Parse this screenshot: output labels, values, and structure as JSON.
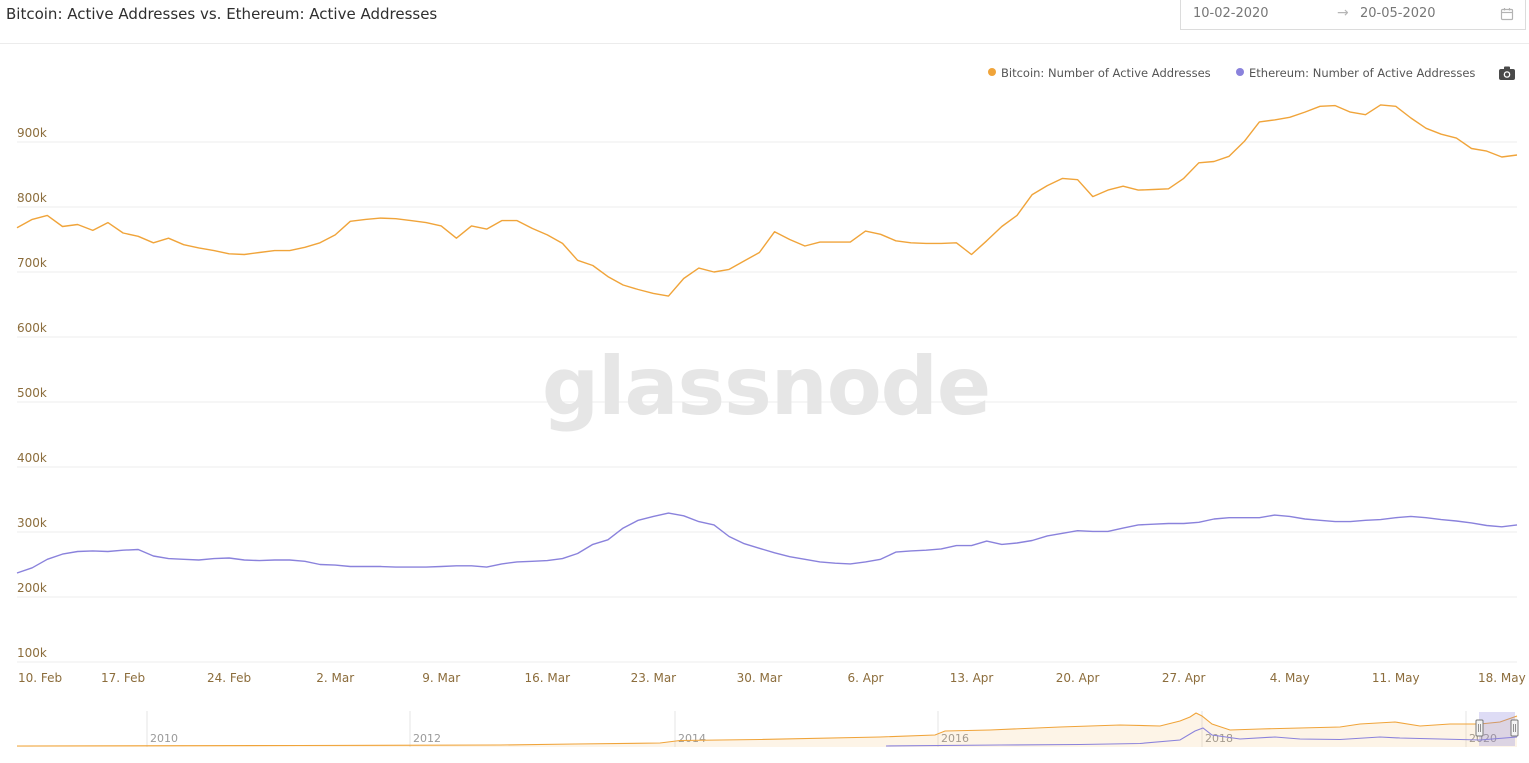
{
  "header": {
    "title": "Bitcoin: Active Addresses vs. Ethereum: Active Addresses",
    "date_from": "10-02-2020",
    "date_arrow": "→",
    "date_to": "20-05-2020"
  },
  "watermark": "glassnode",
  "colors": {
    "bitcoin": "#f0a43a",
    "ethereum": "#8a82dc",
    "grid": "#eeeeee",
    "axis_text": "#8c6d3c"
  },
  "icons": {
    "calendar": "calendar-icon",
    "camera": "camera-icon"
  },
  "chart_data": {
    "type": "line",
    "title": "Bitcoin: Active Addresses vs. Ethereum: Active Addresses",
    "xlabel": "",
    "ylabel": "",
    "x_start": "10-02-2020",
    "x_end": "20-05-2020",
    "x_ticks": [
      "10. Feb",
      "17. Feb",
      "24. Feb",
      "2. Mar",
      "9. Mar",
      "16. Mar",
      "23. Mar",
      "30. Mar",
      "6. Apr",
      "13. Apr",
      "20. Apr",
      "27. Apr",
      "4. May",
      "11. May",
      "18. May"
    ],
    "y_ticks": [
      "100k",
      "200k",
      "300k",
      "400k",
      "500k",
      "600k",
      "700k",
      "800k",
      "900k"
    ],
    "ylim": [
      100000,
      1000000
    ],
    "grid": true,
    "legend_position": "top-right",
    "series": [
      {
        "name": "Bitcoin: Number of Active Addresses",
        "color": "#f0a43a",
        "values": [
          768000,
          781000,
          787000,
          770000,
          773000,
          764000,
          776000,
          760000,
          755000,
          745000,
          752000,
          742000,
          737000,
          733000,
          728000,
          727000,
          730000,
          733000,
          733000,
          738000,
          745000,
          757000,
          778000,
          781000,
          783000,
          782000,
          779000,
          776000,
          771000,
          752000,
          771000,
          766000,
          779000,
          779000,
          767000,
          757000,
          744000,
          718000,
          710000,
          693000,
          680000,
          673000,
          667000,
          663000,
          690000,
          706000,
          700000,
          704000,
          717000,
          730000,
          762000,
          750000,
          740000,
          746000,
          746000,
          746000,
          763000,
          758000,
          748000,
          745000,
          744000,
          744000,
          745000,
          727000,
          748000,
          770000,
          787000,
          819000,
          833000,
          844000,
          842000,
          816000,
          826000,
          832000,
          826000,
          827000,
          828000,
          844000,
          868000,
          870000,
          878000,
          901000,
          931000,
          934000,
          938000,
          946000,
          955000,
          956000,
          946000,
          942000,
          957000,
          955000,
          937000,
          921000,
          912000,
          906000,
          890000,
          886000,
          877000,
          880000
        ]
      },
      {
        "name": "Ethereum: Number of Active Addresses",
        "color": "#8a82dc",
        "values": [
          237000,
          245000,
          258000,
          266000,
          270000,
          271000,
          270000,
          272000,
          273000,
          263000,
          259000,
          258000,
          257000,
          259000,
          260000,
          257000,
          256000,
          257000,
          257000,
          255000,
          250000,
          249000,
          247000,
          247000,
          247000,
          246000,
          246000,
          246000,
          247000,
          248000,
          248000,
          246000,
          251000,
          254000,
          255000,
          256000,
          259000,
          267000,
          281000,
          288000,
          306000,
          318000,
          324000,
          329000,
          325000,
          316000,
          311000,
          293000,
          282000,
          275000,
          268000,
          262000,
          258000,
          254000,
          252000,
          251000,
          254000,
          258000,
          269000,
          271000,
          272000,
          274000,
          279000,
          279000,
          286000,
          281000,
          283000,
          287000,
          294000,
          298000,
          302000,
          301000,
          301000,
          306000,
          311000,
          312000,
          313000,
          313000,
          315000,
          320000,
          322000,
          322000,
          322000,
          326000,
          324000,
          320000,
          318000,
          316000,
          316000,
          318000,
          319000,
          322000,
          324000,
          322000,
          319000,
          317000,
          314000,
          310000,
          308000,
          311000
        ]
      }
    ],
    "navigator": {
      "x_ticks": [
        "2010",
        "2012",
        "2014",
        "2016",
        "2018",
        "2020"
      ]
    }
  }
}
